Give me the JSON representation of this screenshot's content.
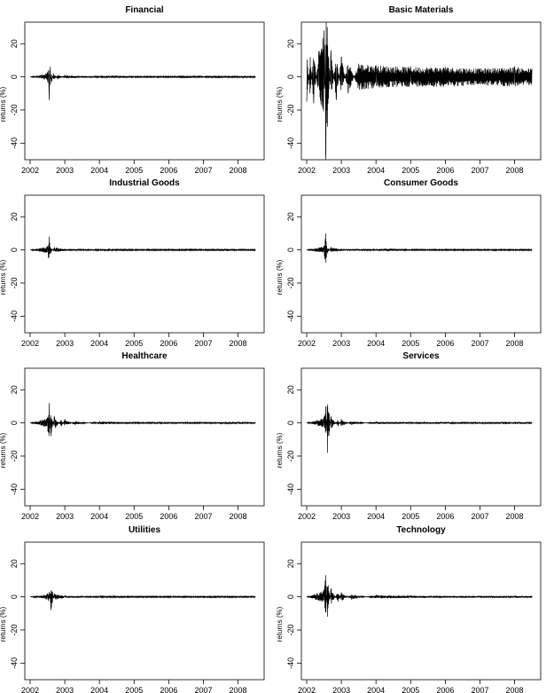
{
  "chart_data": [
    {
      "type": "line",
      "title": "Financial",
      "xlabel": "",
      "ylabel": "returns (%)",
      "x_ticks": [
        "2002",
        "2003",
        "2004",
        "2005",
        "2006",
        "2007",
        "2008"
      ],
      "y_ticks": [
        "20",
        "0",
        "-20",
        "-40"
      ],
      "xlim": [
        2002.0,
        2008.6
      ],
      "ylim": [
        -50,
        33
      ],
      "series": [
        {
          "x": [
            2002.0,
            2002.3,
            2002.45,
            2002.52,
            2002.55,
            2002.58,
            2002.62,
            2002.68,
            2002.8,
            2003.0,
            2003.5,
            2004.0,
            2005.0,
            2006.0,
            2007.0,
            2008.0,
            2008.5
          ],
          "values": [
            0,
            1,
            2,
            4,
            -14,
            6,
            -3,
            2,
            -1.5,
            1,
            0.5,
            0.4,
            0.3,
            0.3,
            0.4,
            0.4,
            0.3
          ]
        }
      ]
    },
    {
      "type": "line",
      "title": "Basic Materials",
      "xlabel": "",
      "ylabel": "returns (%)",
      "x_ticks": [
        "2002",
        "2003",
        "2004",
        "2005",
        "2006",
        "2007",
        "2008"
      ],
      "y_ticks": [
        "20",
        "0",
        "-20",
        "-40"
      ],
      "xlim": [
        2002.0,
        2008.6
      ],
      "ylim": [
        -50,
        33
      ],
      "series": [
        {
          "x": [
            2002.0,
            2002.1,
            2002.2,
            2002.35,
            2002.5,
            2002.55,
            2002.6,
            2002.7,
            2002.85,
            2003.0,
            2003.2,
            2003.5,
            2004.0,
            2005.0,
            2006.0,
            2007.0,
            2008.0,
            2008.5
          ],
          "values": [
            -15,
            12,
            -16,
            15,
            28,
            -50,
            -30,
            16,
            -14,
            12,
            -10,
            8,
            7,
            6,
            6,
            5,
            6,
            5
          ]
        }
      ]
    },
    {
      "type": "line",
      "title": "Industrial Goods",
      "xlabel": "",
      "ylabel": "returns (%)",
      "x_ticks": [
        "2002",
        "2003",
        "2004",
        "2005",
        "2006",
        "2007",
        "2008"
      ],
      "y_ticks": [
        "20",
        "0",
        "-20",
        "-40"
      ],
      "xlim": [
        2002.0,
        2008.6
      ],
      "ylim": [
        -50,
        33
      ],
      "series": [
        {
          "x": [
            2002.0,
            2002.5,
            2002.55,
            2002.6,
            2002.7,
            2003.0,
            2004.0,
            2005.0,
            2006.0,
            2007.0,
            2008.0,
            2008.5
          ],
          "values": [
            0,
            2,
            8,
            -2,
            1.5,
            0.6,
            0.4,
            0.3,
            0.3,
            0.3,
            0.3,
            0.3
          ]
        }
      ]
    },
    {
      "type": "line",
      "title": "Consumer Goods",
      "xlabel": "",
      "ylabel": "returns (%)",
      "x_ticks": [
        "2002",
        "2003",
        "2004",
        "2005",
        "2006",
        "2007",
        "2008"
      ],
      "y_ticks": [
        "20",
        "0",
        "-20",
        "-40"
      ],
      "xlim": [
        2002.0,
        2008.6
      ],
      "ylim": [
        -50,
        33
      ],
      "series": [
        {
          "x": [
            2002.0,
            2002.5,
            2002.55,
            2002.6,
            2002.7,
            2003.0,
            2004.0,
            2005.0,
            2006.0,
            2007.0,
            2008.0,
            2008.5
          ],
          "values": [
            0,
            2,
            10,
            -2,
            1.5,
            0.6,
            0.4,
            0.3,
            0.3,
            0.3,
            0.3,
            0.3
          ]
        }
      ]
    },
    {
      "type": "line",
      "title": "Healthcare",
      "xlabel": "",
      "ylabel": "returns (%)",
      "x_ticks": [
        "2002",
        "2003",
        "2004",
        "2005",
        "2006",
        "2007",
        "2008"
      ],
      "y_ticks": [
        "20",
        "0",
        "-20",
        "-40"
      ],
      "xlim": [
        2002.0,
        2008.6
      ],
      "ylim": [
        -50,
        33
      ],
      "series": [
        {
          "x": [
            2002.0,
            2002.3,
            2002.5,
            2002.55,
            2002.6,
            2002.7,
            2002.9,
            2003.0,
            2003.3,
            2004.0,
            2005.0,
            2006.0,
            2007.0,
            2008.0,
            2008.5
          ],
          "values": [
            0,
            1.5,
            3,
            12,
            -8,
            4,
            -2,
            2,
            -1,
            0.8,
            0.5,
            0.5,
            0.5,
            0.5,
            0.5
          ]
        }
      ]
    },
    {
      "type": "line",
      "title": "Services",
      "xlabel": "",
      "ylabel": "returns (%)",
      "x_ticks": [
        "2002",
        "2003",
        "2004",
        "2005",
        "2006",
        "2007",
        "2008"
      ],
      "y_ticks": [
        "20",
        "0",
        "-20",
        "-40"
      ],
      "xlim": [
        2002.0,
        2008.6
      ],
      "ylim": [
        -50,
        33
      ],
      "series": [
        {
          "x": [
            2002.0,
            2002.3,
            2002.5,
            2002.55,
            2002.6,
            2002.7,
            2002.9,
            2003.0,
            2003.3,
            2004.0,
            2005.0,
            2006.0,
            2007.0,
            2008.0,
            2008.5
          ],
          "values": [
            0,
            1.5,
            3,
            10,
            -18,
            4,
            -2,
            2,
            -1,
            0.7,
            0.5,
            0.5,
            0.5,
            0.5,
            0.5
          ]
        }
      ]
    },
    {
      "type": "line",
      "title": "Utilities",
      "xlabel": "",
      "ylabel": "returns (%)",
      "x_ticks": [
        "2002",
        "2003",
        "2004",
        "2005",
        "2006",
        "2007",
        "2008"
      ],
      "y_ticks": [
        "20",
        "0",
        "-20",
        "-40"
      ],
      "xlim": [
        2002.0,
        2008.6
      ],
      "ylim": [
        -50,
        33
      ],
      "series": [
        {
          "x": [
            2002.0,
            2002.4,
            2002.5,
            2002.55,
            2002.6,
            2002.7,
            2003.0,
            2004.0,
            2005.0,
            2006.0,
            2007.0,
            2008.0,
            2008.5
          ],
          "values": [
            0,
            1,
            2,
            3,
            -8,
            2,
            0.6,
            0.4,
            0.3,
            0.3,
            0.3,
            0.3,
            0.3
          ]
        }
      ]
    },
    {
      "type": "line",
      "title": "Technology",
      "xlabel": "",
      "ylabel": "returns (%)",
      "x_ticks": [
        "2002",
        "2003",
        "2004",
        "2005",
        "2006",
        "2007",
        "2008"
      ],
      "y_ticks": [
        "20",
        "0",
        "-20",
        "-40"
      ],
      "xlim": [
        2002.0,
        2008.6
      ],
      "ylim": [
        -50,
        33
      ],
      "series": [
        {
          "x": [
            2002.0,
            2002.3,
            2002.5,
            2002.55,
            2002.6,
            2002.7,
            2002.9,
            2003.0,
            2003.3,
            2004.0,
            2005.0,
            2006.0,
            2007.0,
            2008.0,
            2008.5
          ],
          "values": [
            0,
            2,
            4,
            13,
            -12,
            5,
            -3,
            2.5,
            -1.5,
            1,
            0.7,
            0.6,
            0.6,
            0.6,
            0.6
          ]
        }
      ]
    }
  ]
}
